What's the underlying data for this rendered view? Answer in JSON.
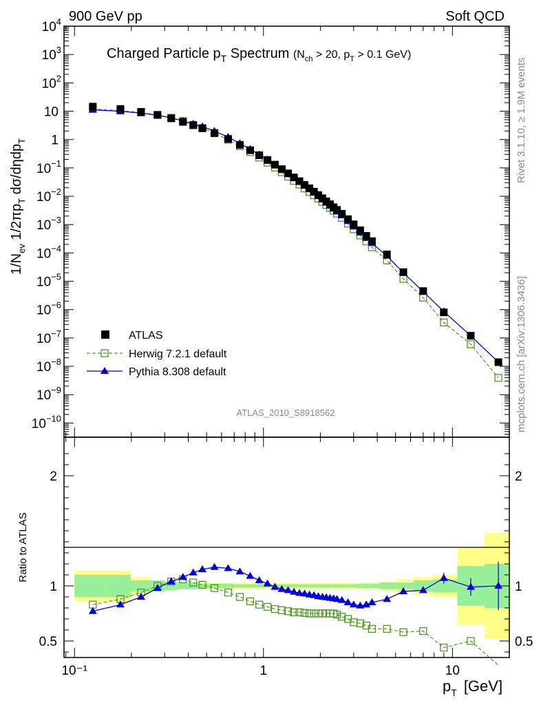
{
  "header": {
    "left": "900 GeV pp",
    "right": "Soft QCD"
  },
  "side": {
    "rivet": "Rivet 3.1.10, ≥ 1.9M events",
    "mcplots": "mcplots.cern.ch [arXiv:1306.3436]"
  },
  "chart_data": {
    "type": "line",
    "title": {
      "main": "Charged Particle p",
      "main_sub": "T",
      "main_tail": " Spectrum",
      "cut_open": "(N",
      "cut_sub1": "ch",
      "cut_mid": " > 20, p",
      "cut_sub2": "T",
      "cut_tail": " > 0.1 GeV)"
    },
    "analysis_label": "ATLAS_2010_S8918562",
    "xlabel": {
      "main": "p",
      "sub": "T",
      "unit": "[GeV]"
    },
    "ylabel_top": "1/N_ev 1/2πp_T dσ/dηdp_T",
    "ylabel_top_parts": {
      "p1": "1/N",
      "s1": "ev",
      "p2": " 1/2πp",
      "s2": "T",
      "p3": " dσ/dηdp",
      "s3": "T"
    },
    "ylabel_bottom": "Ratio to ATLAS",
    "x_scale": "log",
    "xlim": [
      0.088,
      20
    ],
    "x_tick_labels": [
      "10⁻¹",
      "1",
      "10"
    ],
    "x_ticks": [
      0.1,
      1,
      10
    ],
    "top_panel": {
      "y_scale": "log",
      "ylim": [
        3.16e-11,
        10000.0
      ],
      "y_ticks": [
        {
          "v": 10000.0,
          "base": "10",
          "exp": "4"
        },
        {
          "v": 1000.0,
          "base": "10",
          "exp": "3"
        },
        {
          "v": 100.0,
          "base": "10",
          "exp": "2"
        },
        {
          "v": 10,
          "base": "10",
          "exp": ""
        },
        {
          "v": 1,
          "base": "1",
          "exp": ""
        },
        {
          "v": 0.1,
          "base": "10",
          "exp": "−1"
        },
        {
          "v": 0.01,
          "base": "10",
          "exp": "−2"
        },
        {
          "v": 0.001,
          "base": "10",
          "exp": "−3"
        },
        {
          "v": 0.0001,
          "base": "10",
          "exp": "−4"
        },
        {
          "v": 1e-05,
          "base": "10",
          "exp": "−5"
        },
        {
          "v": 1e-06,
          "base": "10",
          "exp": "−6"
        },
        {
          "v": 1e-07,
          "base": "10",
          "exp": "−7"
        },
        {
          "v": 1e-08,
          "base": "10",
          "exp": "−8"
        },
        {
          "v": 1e-09,
          "base": "10",
          "exp": "−9"
        },
        {
          "v": 1e-10,
          "base": "10",
          "exp": "−10"
        }
      ]
    },
    "bottom_panel": {
      "y_scale": "linear",
      "ylim": [
        0.35,
        2.35
      ],
      "y_ticks": [
        {
          "v": 0.5,
          "label": "0.5"
        },
        {
          "v": 1,
          "label": "1"
        },
        {
          "v": 2,
          "label": "2"
        }
      ]
    },
    "legend": {
      "placement": "lower-left",
      "entries": [
        "ATLAS",
        "Herwig 7.2.1 default",
        "Pythia 8.308 default"
      ]
    },
    "colors": {
      "atlas": "#000000",
      "herwig": "#4a9a1e",
      "pythia": "#0000dd",
      "band_stat": "#99ee99",
      "band_syst": "#ffff88"
    },
    "x": [
      0.125,
      0.175,
      0.225,
      0.275,
      0.325,
      0.375,
      0.425,
      0.475,
      0.55,
      0.65,
      0.75,
      0.85,
      0.95,
      1.05,
      1.15,
      1.25,
      1.35,
      1.45,
      1.55,
      1.65,
      1.75,
      1.85,
      1.95,
      2.05,
      2.15,
      2.25,
      2.35,
      2.45,
      2.6,
      2.8,
      3.0,
      3.25,
      3.5,
      3.75,
      4.5,
      5.5,
      7.0,
      9.0,
      12.5,
      17.5
    ],
    "series": [
      {
        "name": "ATLAS",
        "y": [
          14.5,
          12.0,
          9.5,
          7.4,
          5.6,
          4.2,
          3.2,
          2.5,
          1.7,
          1.05,
          0.65,
          0.42,
          0.28,
          0.19,
          0.13,
          0.09,
          0.064,
          0.046,
          0.034,
          0.025,
          0.019,
          0.0145,
          0.011,
          0.0085,
          0.0066,
          0.0052,
          0.0041,
          0.0033,
          0.0024,
          0.00155,
          0.00102,
          0.00063,
          0.0004,
          0.00026,
          8.9e-05,
          2.1e-05,
          4.5e-06,
          8e-07,
          1.2e-07,
          1.4e-08
        ],
        "ratio_band_stat": [
          0.1,
          0.1,
          0.05,
          0.05,
          0.04,
          0.03,
          0.03,
          0.02,
          0.02,
          0.02,
          0.015,
          0.015,
          0.015,
          0.015,
          0.015,
          0.015,
          0.015,
          0.015,
          0.015,
          0.015,
          0.015,
          0.015,
          0.015,
          0.015,
          0.015,
          0.015,
          0.015,
          0.015,
          0.015,
          0.015,
          0.015,
          0.02,
          0.02,
          0.02,
          0.03,
          0.03,
          0.05,
          0.06,
          0.18,
          0.2
        ],
        "ratio_band_syst": [
          0.14,
          0.14,
          0.08,
          0.05,
          0.04,
          0.03,
          0.03,
          0.03,
          0.03,
          0.03,
          0.03,
          0.03,
          0.03,
          0.03,
          0.03,
          0.03,
          0.03,
          0.03,
          0.03,
          0.03,
          0.03,
          0.03,
          0.03,
          0.03,
          0.03,
          0.03,
          0.03,
          0.03,
          0.03,
          0.03,
          0.03,
          0.03,
          0.03,
          0.03,
          0.04,
          0.06,
          0.08,
          0.1,
          0.35,
          0.48
        ]
      },
      {
        "name": "Herwig 7.2.1 default",
        "ratio": [
          0.83,
          0.88,
          0.94,
          1.0,
          1.04,
          1.06,
          1.03,
          1.01,
          0.98,
          0.94,
          0.9,
          0.86,
          0.83,
          0.81,
          0.79,
          0.78,
          0.77,
          0.76,
          0.76,
          0.755,
          0.75,
          0.75,
          0.75,
          0.75,
          0.75,
          0.75,
          0.75,
          0.74,
          0.72,
          0.7,
          0.67,
          0.66,
          0.64,
          0.61,
          0.61,
          0.58,
          0.59,
          0.44,
          0.5,
          0.28
        ]
      },
      {
        "name": "Pythia 8.308 default",
        "ratio": [
          0.77,
          0.83,
          0.9,
          0.98,
          1.04,
          1.08,
          1.12,
          1.15,
          1.17,
          1.16,
          1.13,
          1.09,
          1.05,
          1.02,
          0.99,
          0.97,
          0.96,
          0.945,
          0.935,
          0.93,
          0.92,
          0.915,
          0.905,
          0.9,
          0.895,
          0.89,
          0.885,
          0.88,
          0.87,
          0.85,
          0.83,
          0.82,
          0.83,
          0.85,
          0.88,
          0.95,
          0.96,
          1.07,
          0.99,
          1.0
        ],
        "ratio_err": [
          0,
          0,
          0,
          0,
          0,
          0,
          0,
          0,
          0,
          0,
          0,
          0,
          0,
          0,
          0,
          0,
          0,
          0,
          0,
          0,
          0,
          0,
          0,
          0,
          0,
          0,
          0,
          0,
          0,
          0,
          0,
          0,
          0,
          0,
          0,
          0,
          0.02,
          0.05,
          0.08,
          0.22
        ]
      }
    ]
  }
}
